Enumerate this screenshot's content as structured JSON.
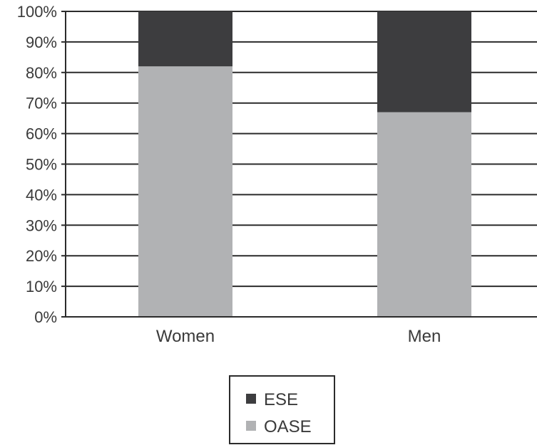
{
  "chart_data": {
    "type": "bar",
    "stacked": true,
    "categories": [
      "Women",
      "Men"
    ],
    "series": [
      {
        "name": "OASE",
        "values": [
          82,
          67
        ],
        "color": "#b1b2b4"
      },
      {
        "name": "ESE",
        "values": [
          18,
          33
        ],
        "color": "#3d3d3f"
      }
    ],
    "y_ticks": [
      "0%",
      "10%",
      "20%",
      "30%",
      "40%",
      "50%",
      "60%",
      "70%",
      "80%",
      "90%",
      "100%"
    ],
    "ylim": [
      0,
      100
    ],
    "grid": true,
    "legend_position": "bottom-center",
    "legend": [
      {
        "name": "ESE",
        "color": "#3d3d3f"
      },
      {
        "name": "OASE",
        "color": "#b1b2b4"
      }
    ]
  }
}
